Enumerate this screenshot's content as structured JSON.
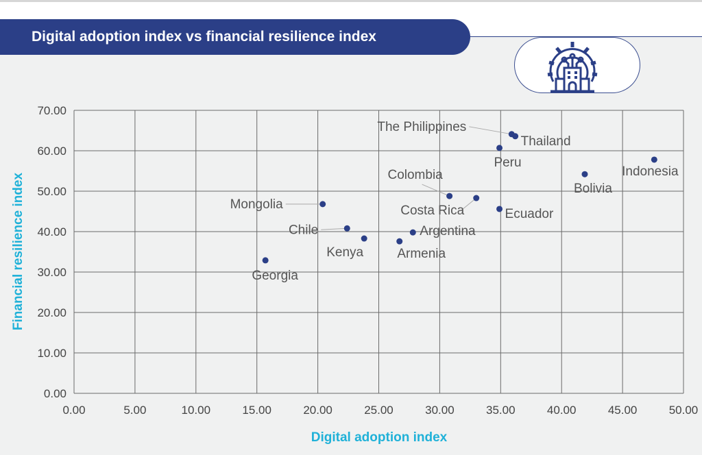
{
  "title": "Digital adoption index vs financial resilience index",
  "icon": "gear-building-tech-icon",
  "chart_data": {
    "type": "scatter",
    "title": "Digital adoption index vs financial resilience index",
    "xlabel": "Digital adoption index",
    "ylabel": "Financial resilience index",
    "xlim": [
      0,
      50
    ],
    "ylim": [
      0,
      70
    ],
    "xticks": [
      "0.00",
      "5.00",
      "10.00",
      "15.00",
      "20.00",
      "25.00",
      "30.00",
      "35.00",
      "40.00",
      "45.00",
      "50.00"
    ],
    "yticks": [
      "0.00",
      "10.00",
      "20.00",
      "30.00",
      "40.00",
      "50.00",
      "60.00",
      "70.00"
    ],
    "grid": true,
    "marker_color": "#2b3f87",
    "axis_title_color": "#1fb1d8",
    "points": [
      {
        "label": "Georgia",
        "x": 15.7,
        "y": 32.9
      },
      {
        "label": "Mongolia",
        "x": 20.4,
        "y": 46.8
      },
      {
        "label": "Chile",
        "x": 22.4,
        "y": 40.8
      },
      {
        "label": "Kenya",
        "x": 23.8,
        "y": 38.3
      },
      {
        "label": "Armenia",
        "x": 26.7,
        "y": 37.6
      },
      {
        "label": "Argentina",
        "x": 27.8,
        "y": 39.8
      },
      {
        "label": "Colombia",
        "x": 30.8,
        "y": 48.8
      },
      {
        "label": "Costa Rica",
        "x": 33.0,
        "y": 48.3
      },
      {
        "label": "Ecuador",
        "x": 34.9,
        "y": 45.6
      },
      {
        "label": "Peru",
        "x": 34.9,
        "y": 60.7
      },
      {
        "label": "The Philippines",
        "x": 35.9,
        "y": 64.1
      },
      {
        "label": "Thailand",
        "x": 36.2,
        "y": 63.6
      },
      {
        "label": "Bolivia",
        "x": 41.9,
        "y": 54.2
      },
      {
        "label": "Indonesia",
        "x": 47.6,
        "y": 57.8
      }
    ]
  }
}
